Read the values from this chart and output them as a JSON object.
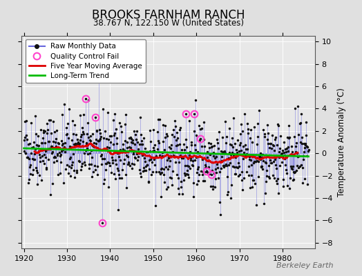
{
  "title": "BROOKS FARNHAM RANCH",
  "subtitle": "38.767 N, 122.150 W (United States)",
  "ylabel": "Temperature Anomaly (°C)",
  "watermark": "Berkeley Earth",
  "xlim": [
    1919.5,
    1987.5
  ],
  "ylim": [
    -8.5,
    10.5
  ],
  "yticks": [
    -8,
    -6,
    -4,
    -2,
    0,
    2,
    4,
    6,
    8,
    10
  ],
  "xticks": [
    1920,
    1930,
    1940,
    1950,
    1960,
    1970,
    1980
  ],
  "fig_bg_color": "#e0e0e0",
  "plot_bg_color": "#e8e8e8",
  "raw_line_color": "#6666dd",
  "dot_color": "#111111",
  "qc_color": "#ff44cc",
  "ma_color": "#dd0000",
  "trend_color": "#00bb00",
  "seed": 42,
  "start_year": 1920,
  "end_year": 1986,
  "noise_std": 1.6,
  "qc_fails": [
    [
      1934.25,
      4.9
    ],
    [
      1936.5,
      3.2
    ],
    [
      1938.25,
      -6.2
    ],
    [
      1957.5,
      3.5
    ],
    [
      1959.5,
      3.5
    ],
    [
      1961.0,
      1.3
    ],
    [
      1962.3,
      -1.6
    ],
    [
      1963.5,
      -1.9
    ]
  ],
  "extra_spikes": [
    [
      1950.5,
      -4.7
    ],
    [
      1965.5,
      -5.5
    ],
    [
      1983.5,
      4.2
    ],
    [
      1984.3,
      3.5
    ],
    [
      1985.5,
      2.8
    ]
  ]
}
